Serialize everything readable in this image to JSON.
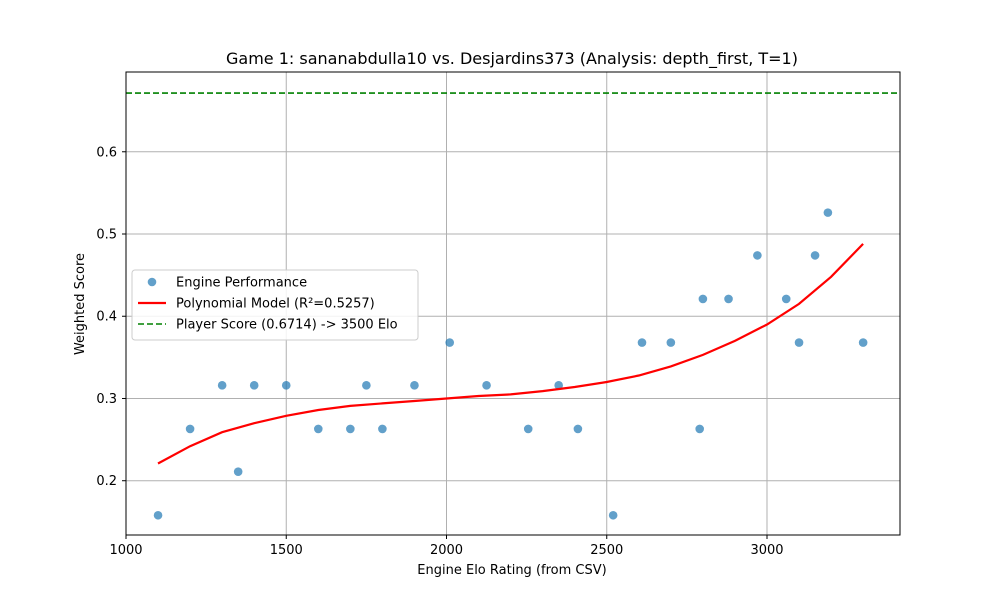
{
  "chart_data": {
    "type": "scatter",
    "title": "Game 1: sananabdulla10 vs. Desjardins373 (Analysis: depth_first, T=1)",
    "xlabel": "Engine Elo Rating (from CSV)",
    "ylabel": "Weighted Score",
    "xlim": [
      1000,
      3415
    ],
    "ylim": [
      0.134,
      0.697
    ],
    "xticks": [
      1000,
      1500,
      2000,
      2500,
      3000
    ],
    "yticks": [
      0.2,
      0.3,
      0.4,
      0.5,
      0.6
    ],
    "xtick_labels": [
      "1000",
      "1500",
      "2000",
      "2500",
      "3000"
    ],
    "ytick_labels": [
      "0.2",
      "0.3",
      "0.4",
      "0.5",
      "0.6"
    ],
    "grid": true,
    "legend_position": "center-left",
    "series": [
      {
        "name": "Engine Performance",
        "kind": "scatter",
        "color": "#1f77b4",
        "x": [
          1100,
          1200,
          1300,
          1350,
          1400,
          1500,
          1600,
          1700,
          1750,
          1800,
          1900,
          2010,
          2125,
          2255,
          2350,
          2410,
          2520,
          2610,
          2700,
          2790,
          2800,
          2880,
          2970,
          3060,
          3100,
          3150,
          3190,
          3300
        ],
        "y": [
          0.158,
          0.263,
          0.316,
          0.211,
          0.316,
          0.316,
          0.263,
          0.263,
          0.316,
          0.263,
          0.316,
          0.368,
          0.316,
          0.263,
          0.316,
          0.263,
          0.158,
          0.368,
          0.368,
          0.263,
          0.421,
          0.421,
          0.474,
          0.421,
          0.368,
          0.474,
          0.526,
          0.368
        ]
      },
      {
        "name": "Polynomial Model (R²=0.5257)",
        "kind": "line",
        "color": "#ff0000",
        "x": [
          1100,
          1200,
          1300,
          1400,
          1500,
          1600,
          1700,
          1800,
          1900,
          2000,
          2100,
          2200,
          2300,
          2400,
          2500,
          2600,
          2700,
          2800,
          2900,
          3000,
          3100,
          3200,
          3300
        ],
        "y": [
          0.221,
          0.242,
          0.259,
          0.27,
          0.279,
          0.286,
          0.291,
          0.294,
          0.297,
          0.3,
          0.303,
          0.305,
          0.309,
          0.314,
          0.32,
          0.328,
          0.339,
          0.353,
          0.37,
          0.39,
          0.415,
          0.448,
          0.488
        ]
      },
      {
        "name": "Player Score (0.6714) -> 3500 Elo",
        "kind": "hline",
        "color": "#008000",
        "y": 0.6714
      }
    ]
  }
}
